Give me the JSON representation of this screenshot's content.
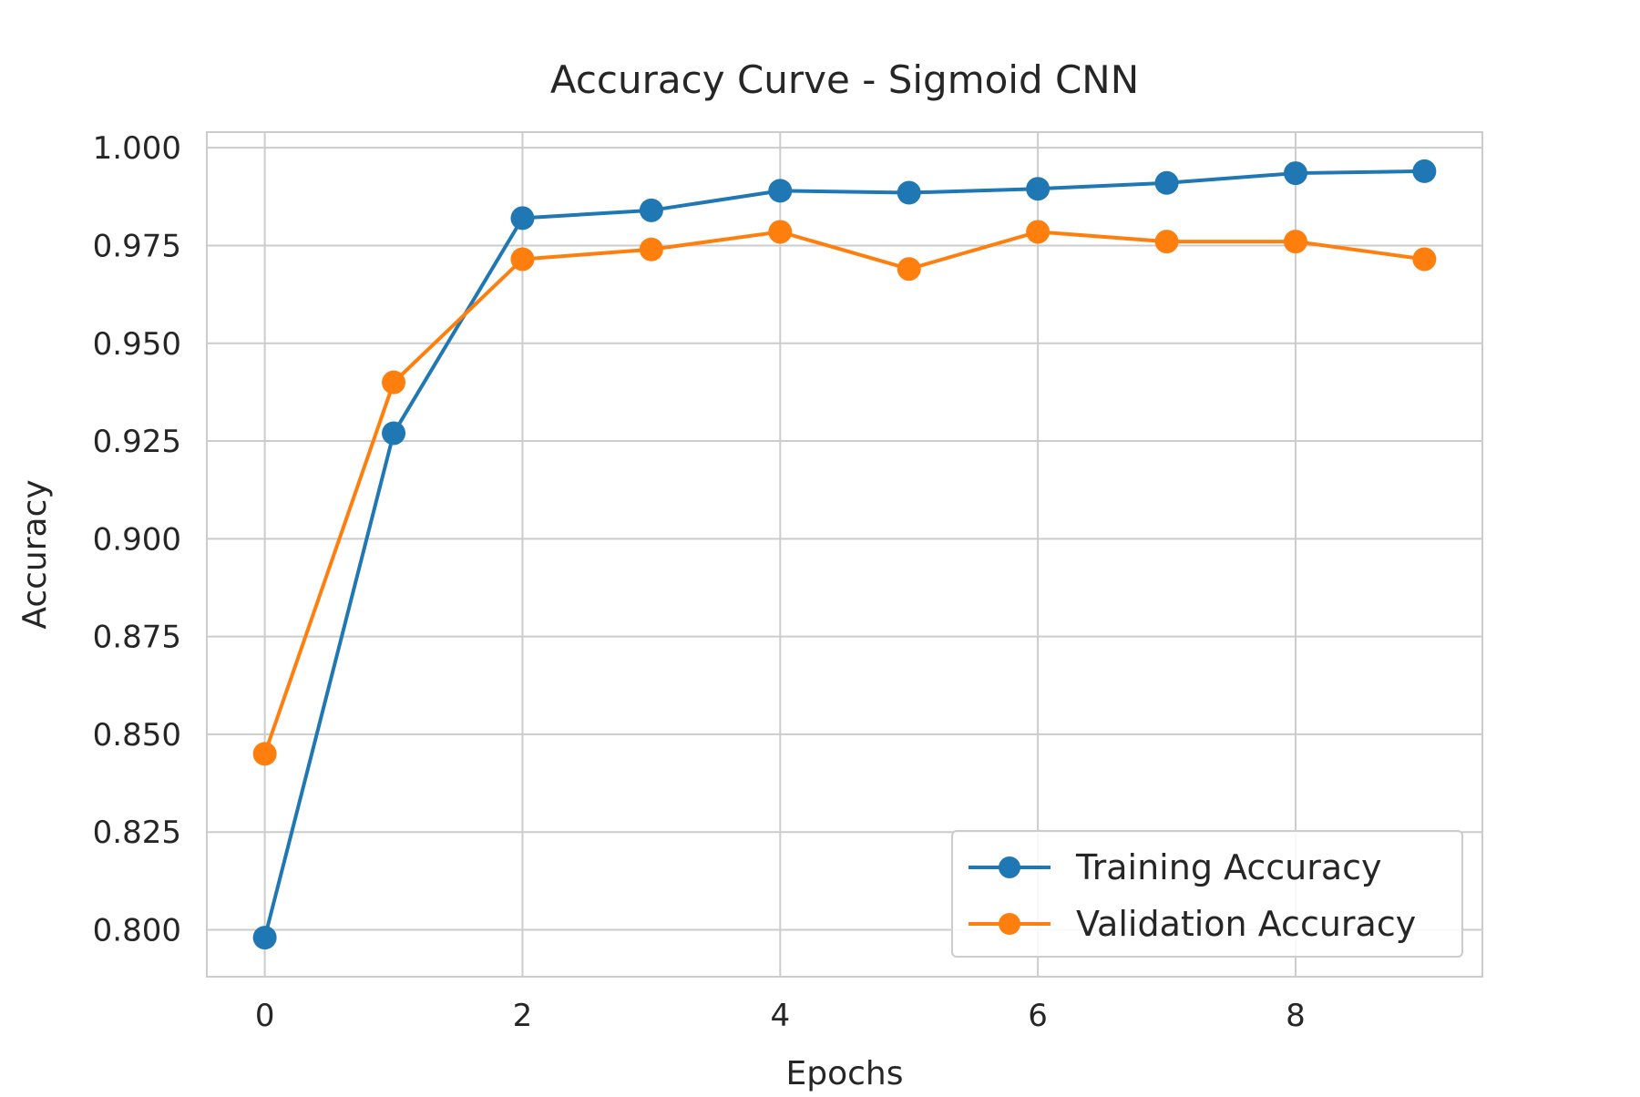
{
  "chart_data": {
    "type": "line",
    "title": "Accuracy Curve - Sigmoid CNN",
    "xlabel": "Epochs",
    "ylabel": "Accuracy",
    "x": [
      0,
      1,
      2,
      3,
      4,
      5,
      6,
      7,
      8,
      9
    ],
    "xlim": [
      -0.45,
      9.45
    ],
    "ylim": [
      0.788,
      1.004
    ],
    "xticks": [
      0,
      2,
      4,
      6,
      8
    ],
    "xtick_labels": [
      "0",
      "2",
      "4",
      "6",
      "8"
    ],
    "yticks": [
      0.8,
      0.825,
      0.85,
      0.875,
      0.9,
      0.925,
      0.95,
      0.975,
      1.0
    ],
    "ytick_labels": [
      "0.800",
      "0.825",
      "0.850",
      "0.875",
      "0.900",
      "0.925",
      "0.950",
      "0.975",
      "1.000"
    ],
    "grid": true,
    "legend_position": "lower-right",
    "series": [
      {
        "name": "Training Accuracy",
        "color": "#1f77b4",
        "marker": "circle",
        "values": [
          0.798,
          0.927,
          0.982,
          0.984,
          0.989,
          0.9885,
          0.9895,
          0.991,
          0.9935,
          0.994
        ]
      },
      {
        "name": "Validation Accuracy",
        "color": "#ff7f0e",
        "marker": "circle",
        "values": [
          0.845,
          0.94,
          0.9715,
          0.974,
          0.9785,
          0.969,
          0.9785,
          0.976,
          0.976,
          0.9715
        ]
      }
    ]
  }
}
